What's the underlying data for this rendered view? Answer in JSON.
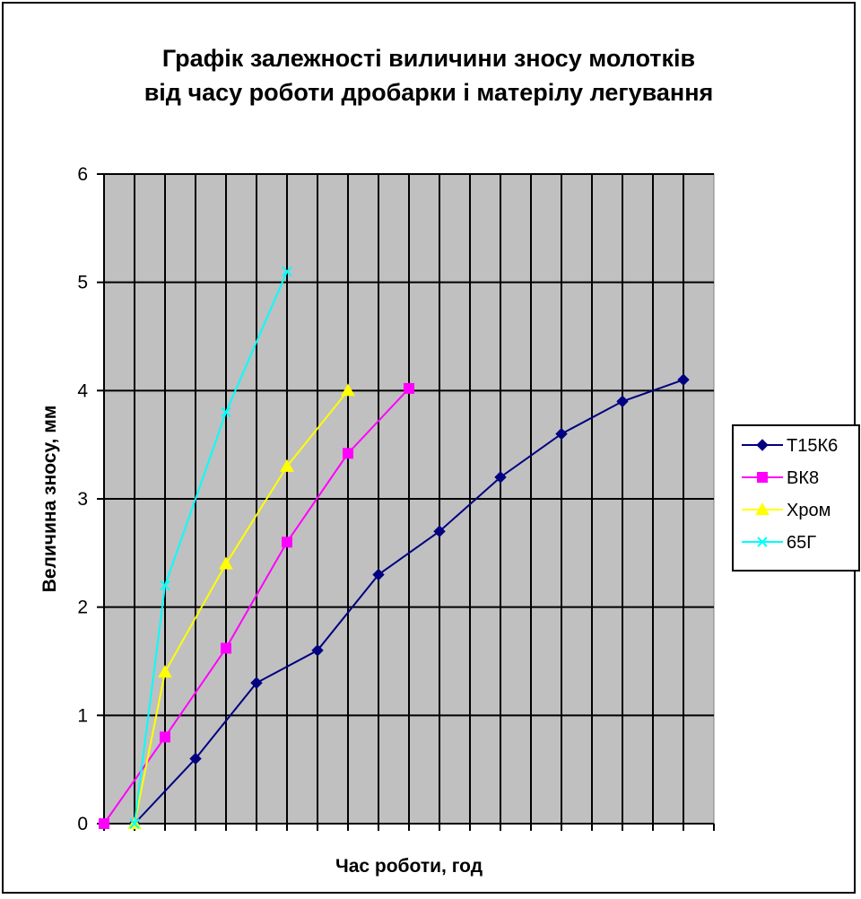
{
  "chart_data": {
    "type": "line",
    "title": [
      "Графік залежності виличини зносу молотків",
      "від часу роботи дробарки і матерілу легування"
    ],
    "xlabel": "Час роботи, год",
    "ylabel": "Величина зносу, мм",
    "ylim": [
      0,
      6
    ],
    "yticks": [
      "0",
      "1",
      "2",
      "3",
      "4",
      "5",
      "6"
    ],
    "xlim": [
      0,
      20
    ],
    "grid": true,
    "plot_background": "#c0c0c0",
    "legend_position": "right",
    "series": [
      {
        "name": "Т15К6",
        "color": "#000080",
        "marker": "diamond",
        "x": [
          1,
          3,
          5,
          7,
          9,
          11,
          13,
          15,
          17,
          19
        ],
        "y": [
          0,
          0.6,
          1.3,
          1.6,
          2.3,
          2.7,
          3.2,
          3.6,
          3.9,
          4.1
        ]
      },
      {
        "name": "ВК8",
        "color": "#ff00ff",
        "marker": "square",
        "x": [
          0,
          2,
          4,
          6,
          8,
          10
        ],
        "y": [
          0,
          0.8,
          1.62,
          2.6,
          3.42,
          4.02
        ]
      },
      {
        "name": "Хром",
        "color": "#ffff00",
        "marker": "triangle",
        "x": [
          1,
          2,
          4,
          6,
          8
        ],
        "y": [
          0,
          1.4,
          2.4,
          3.3,
          4.0
        ]
      },
      {
        "name": "65Г",
        "color": "#00ffff",
        "marker": "x",
        "x": [
          1,
          2,
          4,
          6
        ],
        "y": [
          0,
          2.2,
          3.8,
          5.1
        ]
      }
    ]
  }
}
